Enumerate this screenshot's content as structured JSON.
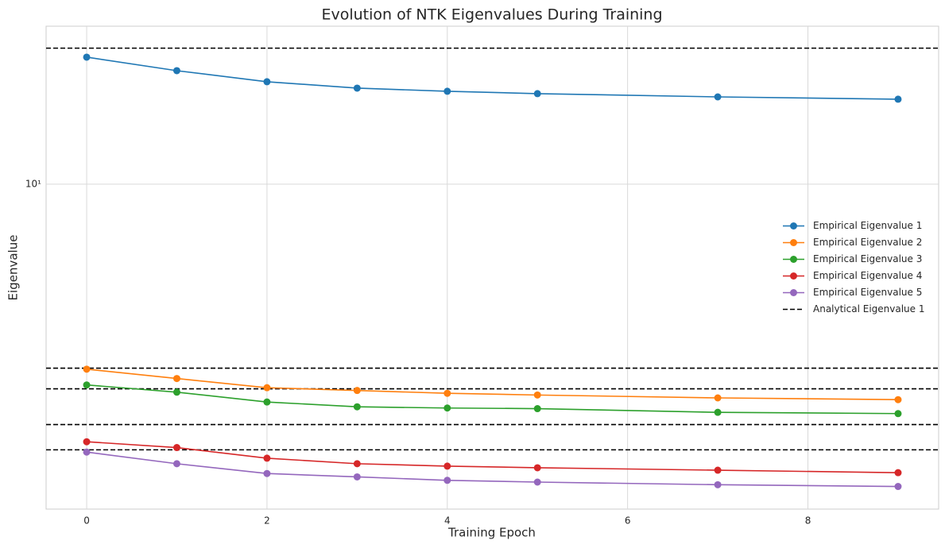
{
  "chart_data": {
    "type": "line",
    "title": "Evolution of NTK Eigenvalues During Training",
    "xlabel": "Training Epoch",
    "ylabel": "Eigenvalue",
    "x": [
      0,
      1,
      2,
      3,
      4,
      5,
      7,
      9
    ],
    "series": [
      {
        "name": "Empirical Eigenvalue 1",
        "color": "#1f77b4",
        "values": [
          18.48,
          17.31,
          16.41,
          15.91,
          15.67,
          15.49,
          15.25,
          15.08
        ]
      },
      {
        "name": "Empirical Eigenvalue 2",
        "color": "#ff7f0e",
        "values": [
          4.09,
          3.91,
          3.74,
          3.69,
          3.64,
          3.61,
          3.56,
          3.53
        ]
      },
      {
        "name": "Empirical Eigenvalue 3",
        "color": "#2ca02c",
        "values": [
          3.79,
          3.66,
          3.49,
          3.41,
          3.39,
          3.38,
          3.32,
          3.3
        ]
      },
      {
        "name": "Empirical Eigenvalue 4",
        "color": "#d62728",
        "values": [
          2.88,
          2.8,
          2.66,
          2.59,
          2.56,
          2.54,
          2.51,
          2.48
        ]
      },
      {
        "name": "Empirical Eigenvalue 5",
        "color": "#9467bd",
        "values": [
          2.74,
          2.59,
          2.47,
          2.43,
          2.39,
          2.37,
          2.34,
          2.32
        ]
      }
    ],
    "hlines": {
      "name": "Analytical Eigenvalue 1",
      "color": "#000000",
      "values": [
        19.3,
        4.11,
        3.72,
        3.13,
        2.77
      ]
    },
    "xlim": [
      -0.45,
      9.45
    ],
    "xticks": [
      0,
      2,
      4,
      6,
      8
    ],
    "ylim": [
      2.08,
      21.46
    ],
    "yticks": [
      {
        "value": 10,
        "label": "10¹"
      }
    ],
    "log_y": true,
    "grid": true,
    "legend": "center right"
  }
}
